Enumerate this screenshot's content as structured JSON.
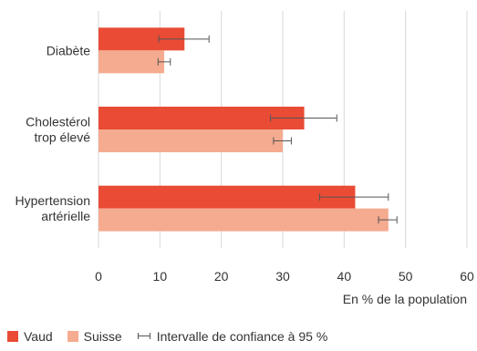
{
  "chart_data": {
    "type": "bar",
    "orientation": "horizontal",
    "categories": [
      "Diabète",
      "Cholestérol trop élevé",
      "Hypertension artérielle"
    ],
    "category_lines": [
      [
        "Diabète"
      ],
      [
        "Cholestérol",
        "trop élevé"
      ],
      [
        "Hypertension",
        "artérielle"
      ]
    ],
    "series": [
      {
        "name": "Vaud",
        "color": "#e94b35",
        "values": [
          14.0,
          33.5,
          41.8
        ],
        "ci_low": [
          9.8,
          28.0,
          36.0
        ],
        "ci_high": [
          18.0,
          38.8,
          47.2
        ]
      },
      {
        "name": "Suisse",
        "color": "#f5ab8f",
        "values": [
          10.7,
          30.0,
          47.2
        ],
        "ci_low": [
          9.7,
          28.5,
          45.6
        ],
        "ci_high": [
          11.7,
          31.4,
          48.6
        ]
      }
    ],
    "xlim": [
      0,
      60
    ],
    "xticks": [
      0,
      10,
      20,
      30,
      40,
      50,
      60
    ],
    "xlabel": "En % de la population",
    "grid": "vertical",
    "legend": {
      "placement": "bottom-left",
      "ci_label": "Intervalle de confiance à 95 %"
    }
  }
}
